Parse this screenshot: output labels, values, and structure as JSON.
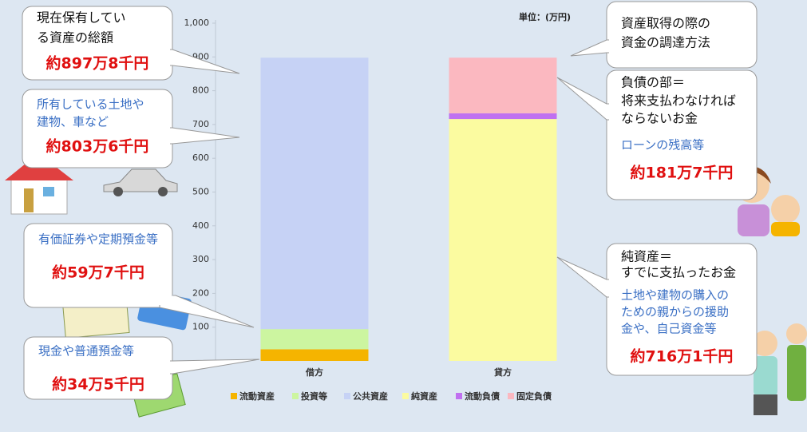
{
  "chart_data": {
    "type": "stacked_bar",
    "unit_label": "単位：(万円)",
    "categories": [
      "借方",
      "貸方"
    ],
    "series": [
      {
        "name": "流動資産",
        "color": "#f5b400",
        "values": [
          34.5,
          null
        ]
      },
      {
        "name": "投資等",
        "color": "#ccf5a0",
        "values": [
          59.7,
          null
        ]
      },
      {
        "name": "公共資産",
        "color": "#c6d2f5",
        "values": [
          803.6,
          null
        ]
      },
      {
        "name": "純資産",
        "color": "#fbfba0",
        "values": [
          null,
          716.1
        ]
      },
      {
        "name": "流動負債",
        "color": "#c070f0",
        "values": [
          null,
          17
        ]
      },
      {
        "name": "固定負債",
        "color": "#fbb8c0",
        "values": [
          null,
          164.7
        ]
      }
    ],
    "ylim": [
      0,
      1000
    ],
    "yticks": [
      100,
      200,
      300,
      400,
      500,
      600,
      700,
      800,
      900,
      {
        "value": 1000,
        "label": "1,000"
      }
    ],
    "annotations": [
      {
        "lines": [
          "現在保有してい",
          "る資産の総額"
        ],
        "notes": [],
        "amount": "約897万8千円"
      },
      {
        "lines": [],
        "notes": [
          "所有している土地や",
          "建物、車など"
        ],
        "amount": "約803万6千円"
      },
      {
        "lines": [],
        "notes": [
          "有価証券や定期預金等"
        ],
        "amount": "約59万7千円"
      },
      {
        "lines": [],
        "notes": [
          "現金や普通預金等"
        ],
        "amount": "約34万5千円"
      },
      {
        "lines": [
          "資産取得の際の",
          "資金の調達方法"
        ],
        "notes": [],
        "amount": null
      },
      {
        "lines": [
          "負債の部＝",
          "将来支払わなければ",
          "ならないお金"
        ],
        "notes": [
          "ローンの残高等"
        ],
        "amount": "約181万7千円"
      },
      {
        "lines": [
          "純資産＝",
          "すでに支払ったお金"
        ],
        "notes": [
          "土地や建物の購入の",
          "ための親からの援助",
          "金や、自己資金等"
        ],
        "amount": "約716万1千円"
      }
    ]
  }
}
